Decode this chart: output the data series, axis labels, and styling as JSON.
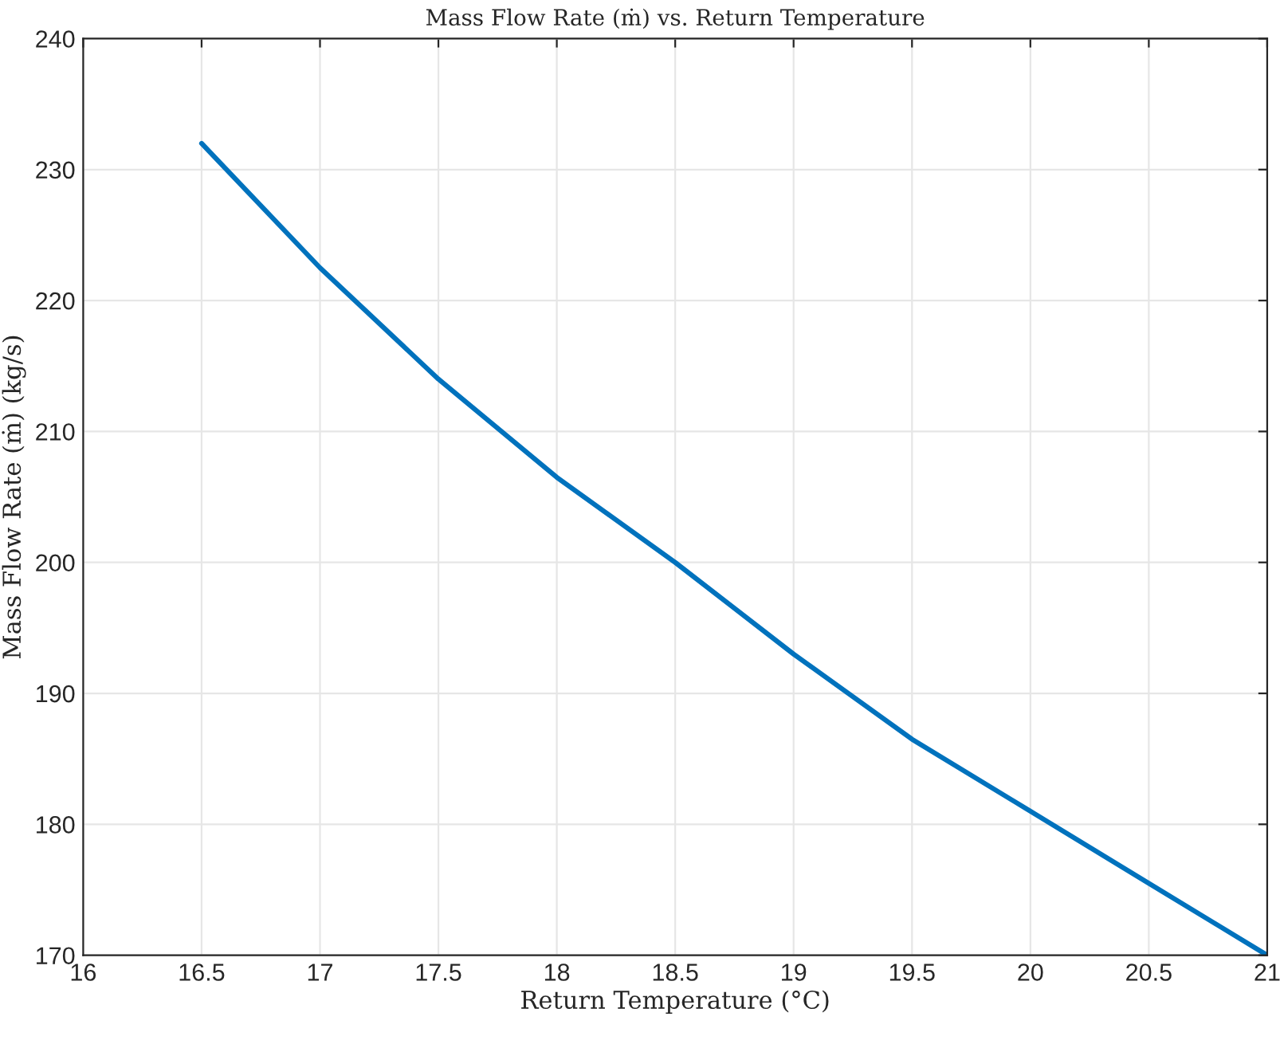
{
  "chart_data": {
    "type": "line",
    "title": "Mass Flow Rate (ṁ) vs. Return Temperature",
    "xlabel": "Return Temperature (°C)",
    "ylabel": "Mass Flow Rate (ṁ) (kg/s)",
    "series": [
      {
        "color": "#0072bd",
        "x": [
          16.5,
          17,
          17.5,
          18,
          18.5,
          19,
          19.5,
          20,
          20.5,
          21
        ],
        "values": [
          232,
          222.5,
          214,
          206.5,
          200,
          193,
          186.5,
          181,
          175.5,
          170
        ]
      }
    ],
    "xlim": [
      16,
      21
    ],
    "xticks": [
      16,
      16.5,
      17,
      17.5,
      18,
      18.5,
      19,
      19.5,
      20,
      20.5,
      21
    ],
    "ylim": [
      170,
      240
    ],
    "yticks": [
      170,
      180,
      190,
      200,
      210,
      220,
      230,
      240
    ],
    "grid": true,
    "line_style": "solid"
  }
}
